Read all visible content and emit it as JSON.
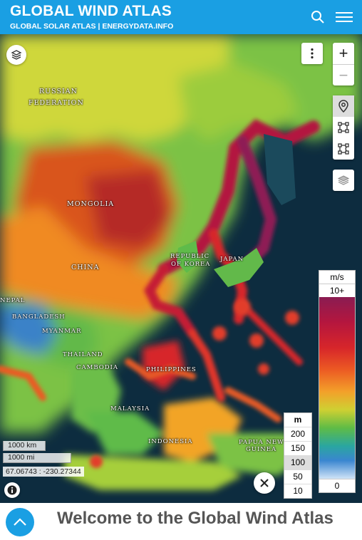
{
  "header": {
    "title": "GLOBAL WIND ATLAS",
    "subtitle": "GLOBAL SOLAR ATLAS | ENERGYDATA.INFO"
  },
  "map": {
    "labels": [
      {
        "text": "RUSSIAN"
      },
      {
        "text": "FEDERATION"
      },
      {
        "text": "MONGOLIA"
      },
      {
        "text": "CHINA"
      },
      {
        "text": "REPUBLIC"
      },
      {
        "text": "OF KOREA"
      },
      {
        "text": "JAPAN"
      },
      {
        "text": "NEPAL"
      },
      {
        "text": "BANGLADESH"
      },
      {
        "text": "MYANMAR"
      },
      {
        "text": "THAILAND"
      },
      {
        "text": "CAMBODIA"
      },
      {
        "text": "PHILIPPINES"
      },
      {
        "text": "MALAYSIA"
      },
      {
        "text": "INDONESIA"
      },
      {
        "text": "PAPUA NEW"
      },
      {
        "text": "GUINEA"
      }
    ],
    "zoom_in": "+",
    "zoom_out": "−",
    "scale_km": "1000 km",
    "scale_mi": "1000 mi",
    "coordinates": "67.06743 : -230.27344"
  },
  "legend": {
    "unit": "m/s",
    "max": "10+",
    "min": "0"
  },
  "height_selector": {
    "unit": "m",
    "options": [
      "200",
      "150",
      "100",
      "50",
      "10"
    ],
    "selected": "100"
  },
  "footer": {
    "welcome": "Welcome to the Global Wind Atlas"
  },
  "colors": {
    "brand": "#1a9fe3",
    "ocean": "#0c2a3c"
  }
}
